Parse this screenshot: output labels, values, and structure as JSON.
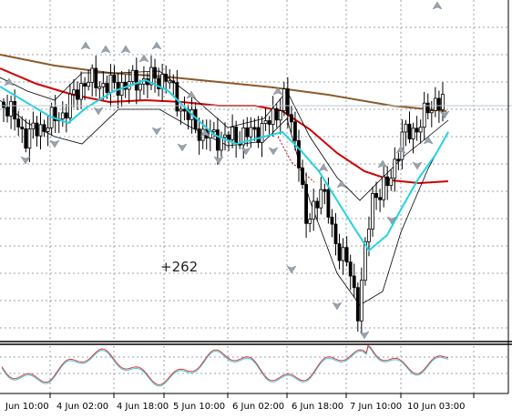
{
  "chart": {
    "profit_label": "+262",
    "colors": {
      "background": "#ffffff",
      "grid": "#9aa3ad",
      "candle": "#000000",
      "ma_fast": "#22d3e0",
      "ma_medium": "#d00000",
      "ma_slow": "#8b5a2b",
      "envelope": "#000000",
      "signal_arrow": "#9aa3ad",
      "oscillator_main": "#e23b3b",
      "oscillator_signal": "#3cc8d8",
      "crosshair": "#bfc7cf"
    },
    "time_axis_labels": [
      "Jun 10:00",
      "4 Jun 02:00",
      "4 Jun 18:00",
      "5 Jun 10:00",
      "6 Jun 02:00",
      "6 Jun 18:00",
      "7 Jun 10:00",
      "10 Jun 03:00"
    ],
    "indicator_names": [
      "fast-ma",
      "medium-ma",
      "slow-ma",
      "envelope",
      "oscillator"
    ]
  }
}
